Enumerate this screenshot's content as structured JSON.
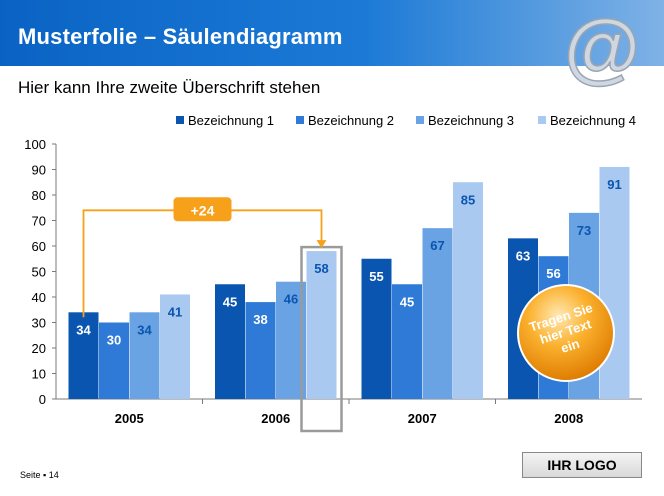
{
  "slide": {
    "title": "Musterfolie – Säulendiagramm",
    "subtitle": "Hier kann Ihre zweite Überschrift stehen",
    "page_label": "Seite",
    "page_number": "14",
    "logo_text": "IHR LOGO",
    "bubble_text": [
      "Tragen Sie",
      "hier Text",
      "ein"
    ],
    "change_label": "+24"
  },
  "colors": {
    "series": [
      "#0a55b0",
      "#2e7ad6",
      "#6aa3e3",
      "#a9c9f0"
    ],
    "accent": "#f7a11a"
  },
  "chart_data": {
    "type": "bar",
    "categories": [
      "2005",
      "2006",
      "2007",
      "2008"
    ],
    "series": [
      {
        "name": "Bezeichnung 1",
        "values": [
          34,
          45,
          55,
          63
        ]
      },
      {
        "name": "Bezeichnung 2",
        "values": [
          30,
          38,
          45,
          56
        ]
      },
      {
        "name": "Bezeichnung 3",
        "values": [
          34,
          46,
          67,
          73
        ]
      },
      {
        "name": "Bezeichnung 4",
        "values": [
          41,
          58,
          85,
          91
        ]
      }
    ],
    "ylim": [
      0,
      100
    ],
    "yticks": [
      0,
      10,
      20,
      30,
      40,
      50,
      60,
      70,
      80,
      90,
      100
    ],
    "legend_position": "top-right",
    "grid": false,
    "annotation": {
      "text": "+24",
      "from": {
        "series": 0,
        "category": 0
      },
      "to": {
        "series": 3,
        "category": 1
      }
    }
  }
}
